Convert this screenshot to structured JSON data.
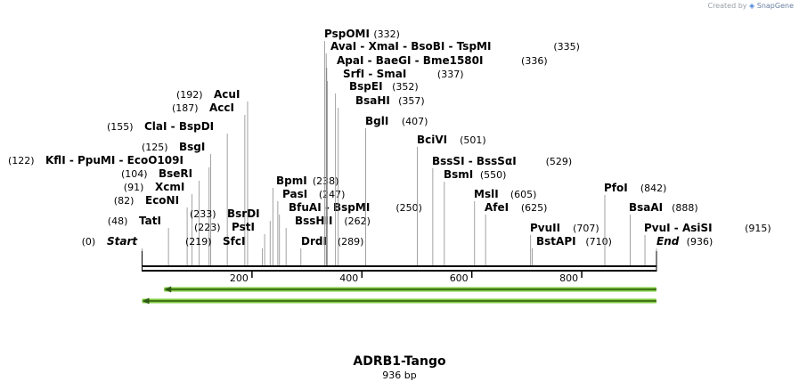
{
  "branding": {
    "prefix": "Created by",
    "name": "SnapGene"
  },
  "sequence": {
    "name": "ADRB1-Tango",
    "length_bp": 936,
    "length_label": "936 bp"
  },
  "axis": {
    "ticks": [
      {
        "bp": 200,
        "label": "200"
      },
      {
        "bp": 400,
        "label": "400"
      },
      {
        "bp": 600,
        "label": "600"
      },
      {
        "bp": 800,
        "label": "800"
      }
    ]
  },
  "features": [
    {
      "name": "forward-arrow-1",
      "start": 40,
      "end": 936,
      "direction": "reverse",
      "color": "#7dc93c"
    },
    {
      "name": "forward-arrow-2",
      "start": 0,
      "end": 936,
      "direction": "reverse",
      "color": "#7dc93c"
    }
  ],
  "sites": [
    {
      "names": [
        "Start"
      ],
      "pos_label": "(0)",
      "bp": 0,
      "italic": true,
      "pos_left": true
    },
    {
      "names": [
        "TatI"
      ],
      "pos_label": "(48)",
      "bp": 48,
      "pos_left": true
    },
    {
      "names": [
        "EcoNI"
      ],
      "pos_label": "(82)",
      "bp": 82,
      "pos_left": true
    },
    {
      "names": [
        "XcmI"
      ],
      "pos_label": "(91)",
      "bp": 91,
      "pos_left": true
    },
    {
      "names": [
        "BseRI"
      ],
      "pos_label": "(104)",
      "bp": 104,
      "pos_left": true
    },
    {
      "names": [
        "KflI",
        "PpuMI",
        "EcoO109I"
      ],
      "pos_label": "(122)",
      "bp": 122,
      "pos_left": true
    },
    {
      "names": [
        "BsgI"
      ],
      "pos_label": "(125)",
      "bp": 125,
      "pos_left": true
    },
    {
      "names": [
        "ClaI",
        "BspDI"
      ],
      "pos_label": "(155)",
      "bp": 155,
      "pos_left": true
    },
    {
      "names": [
        "AccI"
      ],
      "pos_label": "(187)",
      "bp": 187,
      "pos_left": true
    },
    {
      "names": [
        "AcuI"
      ],
      "pos_label": "(192)",
      "bp": 192,
      "pos_left": true
    },
    {
      "names": [
        "SfcI"
      ],
      "pos_label": "(219)",
      "bp": 219,
      "pos_left": true
    },
    {
      "names": [
        "PstI"
      ],
      "pos_label": "(223)",
      "bp": 223,
      "pos_left": true
    },
    {
      "names": [
        "BsrDI"
      ],
      "pos_label": "(233)",
      "bp": 233,
      "pos_left": true
    },
    {
      "names": [
        "BpmI"
      ],
      "pos_label": "(238)",
      "bp": 238,
      "pos_left": false
    },
    {
      "names": [
        "PasI"
      ],
      "pos_label": "(247)",
      "bp": 247,
      "pos_left": false
    },
    {
      "names": [
        "BfuAI",
        "BspMI"
      ],
      "pos_label": "(250)",
      "bp": 250,
      "pos_left": false
    },
    {
      "names": [
        "BssHII"
      ],
      "pos_label": "(262)",
      "bp": 262,
      "pos_left": false
    },
    {
      "names": [
        "DrdI"
      ],
      "pos_label": "(289)",
      "bp": 289,
      "pos_left": false
    },
    {
      "names": [
        "PspOMI"
      ],
      "pos_label": "(332)",
      "bp": 332,
      "pos_left": false
    },
    {
      "names": [
        "AvaI",
        "XmaI",
        "BsoBI",
        "TspMI"
      ],
      "pos_label": "(335)",
      "bp": 335,
      "pos_left": false
    },
    {
      "names": [
        "ApaI",
        "BaeGI",
        "Bme1580I"
      ],
      "pos_label": "(336)",
      "bp": 336,
      "pos_left": false
    },
    {
      "names": [
        "SrfI",
        "SmaI"
      ],
      "pos_label": "(337)",
      "bp": 337,
      "pos_left": false
    },
    {
      "names": [
        "BspEI"
      ],
      "pos_label": "(352)",
      "bp": 352,
      "pos_left": false
    },
    {
      "names": [
        "BsaHI"
      ],
      "pos_label": "(357)",
      "bp": 357,
      "pos_left": false
    },
    {
      "names": [
        "BglI"
      ],
      "pos_label": "(407)",
      "bp": 407,
      "pos_left": false
    },
    {
      "names": [
        "BciVI"
      ],
      "pos_label": "(501)",
      "bp": 501,
      "pos_left": false
    },
    {
      "names": [
        "BssSI",
        "BssSαI"
      ],
      "pos_label": "(529)",
      "bp": 529,
      "pos_left": false
    },
    {
      "names": [
        "BsmI"
      ],
      "pos_label": "(550)",
      "bp": 550,
      "pos_left": false
    },
    {
      "names": [
        "MslI"
      ],
      "pos_label": "(605)",
      "bp": 605,
      "pos_left": false
    },
    {
      "names": [
        "AfeI"
      ],
      "pos_label": "(625)",
      "bp": 625,
      "pos_left": false
    },
    {
      "names": [
        "PvuII"
      ],
      "pos_label": "(707)",
      "bp": 707,
      "pos_left": false
    },
    {
      "names": [
        "BstAPI"
      ],
      "pos_label": "(710)",
      "bp": 710,
      "pos_left": false
    },
    {
      "names": [
        "PfoI"
      ],
      "pos_label": "(842)",
      "bp": 842,
      "pos_left": false
    },
    {
      "names": [
        "BsaAI"
      ],
      "pos_label": "(888)",
      "bp": 888,
      "pos_left": false
    },
    {
      "names": [
        "PvuI",
        "AsiSI"
      ],
      "pos_label": "(915)",
      "bp": 915,
      "pos_left": false
    },
    {
      "names": [
        "End"
      ],
      "pos_label": "(936)",
      "bp": 936,
      "italic": true,
      "pos_left": false
    }
  ]
}
